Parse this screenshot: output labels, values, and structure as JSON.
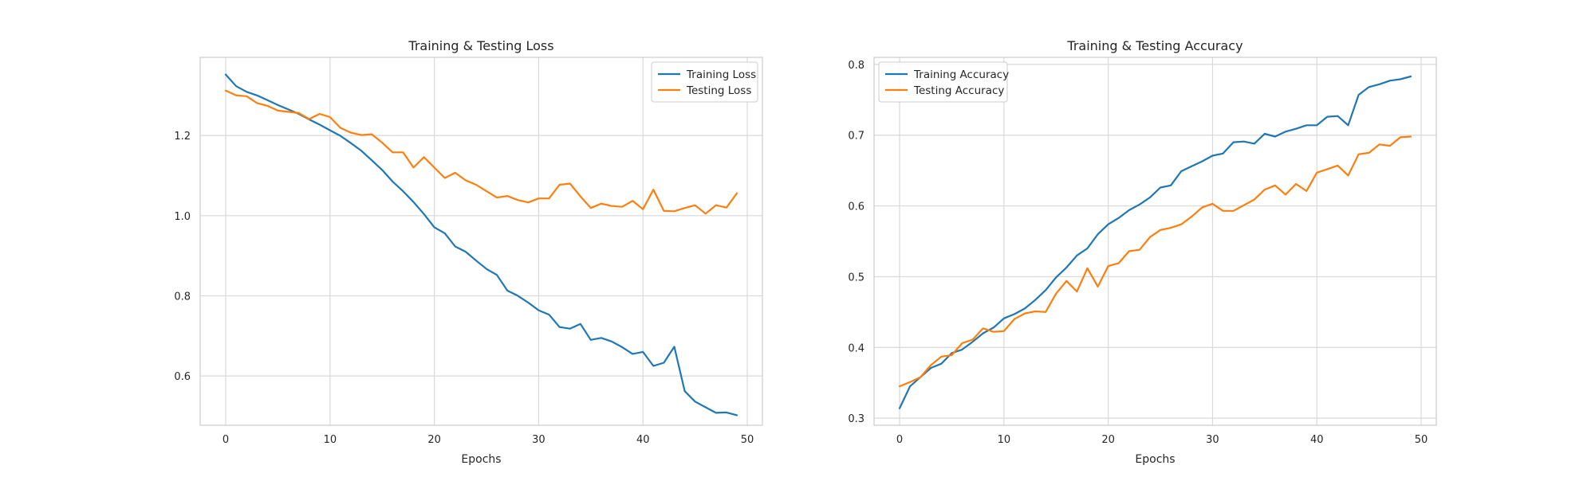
{
  "chart_data": [
    {
      "type": "line",
      "title": "Training & Testing Loss",
      "xlabel": "Epochs",
      "ylabel": "",
      "xlim": [
        -2.45,
        51.45
      ],
      "ylim": [
        0.477,
        1.395
      ],
      "xticks": [
        0,
        10,
        20,
        30,
        40,
        50
      ],
      "yticks": [
        0.6,
        0.8,
        1.0,
        1.2
      ],
      "ytick_labels": [
        "0.6",
        "0.8",
        "1.0",
        "1.2"
      ],
      "grid": true,
      "legend_position": "top-right",
      "x": [
        0,
        1,
        2,
        3,
        4,
        5,
        6,
        7,
        8,
        9,
        10,
        11,
        12,
        13,
        14,
        15,
        16,
        17,
        18,
        19,
        20,
        21,
        22,
        23,
        24,
        25,
        26,
        27,
        28,
        29,
        30,
        31,
        32,
        33,
        34,
        35,
        36,
        37,
        38,
        39,
        40,
        41,
        42,
        43,
        44,
        45,
        46,
        47,
        48,
        49
      ],
      "series": [
        {
          "name": "Training Loss",
          "color": "#1f77b4",
          "values": [
            1.352,
            1.323,
            1.309,
            1.3,
            1.288,
            1.276,
            1.265,
            1.254,
            1.24,
            1.227,
            1.213,
            1.199,
            1.181,
            1.162,
            1.138,
            1.114,
            1.085,
            1.061,
            1.034,
            1.004,
            0.971,
            0.956,
            0.923,
            0.91,
            0.888,
            0.867,
            0.852,
            0.813,
            0.8,
            0.783,
            0.764,
            0.753,
            0.722,
            0.718,
            0.73,
            0.69,
            0.695,
            0.686,
            0.672,
            0.655,
            0.66,
            0.625,
            0.633,
            0.673,
            0.562,
            0.536,
            0.522,
            0.508,
            0.509,
            0.502
          ]
        },
        {
          "name": "Testing Loss",
          "color": "#ff7f0e",
          "values": [
            1.312,
            1.3,
            1.298,
            1.281,
            1.274,
            1.262,
            1.259,
            1.256,
            1.241,
            1.254,
            1.246,
            1.219,
            1.207,
            1.201,
            1.203,
            1.182,
            1.158,
            1.158,
            1.12,
            1.146,
            1.12,
            1.094,
            1.107,
            1.088,
            1.077,
            1.061,
            1.045,
            1.049,
            1.039,
            1.033,
            1.043,
            1.043,
            1.077,
            1.08,
            1.048,
            1.019,
            1.03,
            1.024,
            1.022,
            1.037,
            1.016,
            1.065,
            1.012,
            1.011,
            1.019,
            1.026,
            1.005,
            1.026,
            1.02,
            1.056
          ]
        }
      ]
    },
    {
      "type": "line",
      "title": "Training & Testing Accuracy",
      "xlabel": "Epochs",
      "ylabel": "",
      "xlim": [
        -2.45,
        51.45
      ],
      "ylim": [
        0.29,
        0.81
      ],
      "xticks": [
        0,
        10,
        20,
        30,
        40,
        50
      ],
      "yticks": [
        0.3,
        0.4,
        0.5,
        0.6,
        0.7,
        0.8
      ],
      "ytick_labels": [
        "0.3",
        "0.4",
        "0.5",
        "0.6",
        "0.7",
        "0.8"
      ],
      "grid": true,
      "legend_position": "top-left",
      "x": [
        0,
        1,
        2,
        3,
        4,
        5,
        6,
        7,
        8,
        9,
        10,
        11,
        12,
        13,
        14,
        15,
        16,
        17,
        18,
        19,
        20,
        21,
        22,
        23,
        24,
        25,
        26,
        27,
        28,
        29,
        30,
        31,
        32,
        33,
        34,
        35,
        36,
        37,
        38,
        39,
        40,
        41,
        42,
        43,
        44,
        45,
        46,
        47,
        48,
        49
      ],
      "series": [
        {
          "name": "Training Accuracy",
          "color": "#1f77b4",
          "values": [
            0.314,
            0.345,
            0.358,
            0.371,
            0.377,
            0.392,
            0.397,
            0.408,
            0.42,
            0.428,
            0.441,
            0.447,
            0.455,
            0.467,
            0.481,
            0.499,
            0.513,
            0.53,
            0.54,
            0.56,
            0.574,
            0.583,
            0.594,
            0.602,
            0.612,
            0.626,
            0.629,
            0.649,
            0.656,
            0.663,
            0.671,
            0.674,
            0.69,
            0.691,
            0.688,
            0.702,
            0.698,
            0.705,
            0.709,
            0.714,
            0.714,
            0.726,
            0.727,
            0.714,
            0.757,
            0.768,
            0.772,
            0.777,
            0.779,
            0.783
          ]
        },
        {
          "name": "Testing Accuracy",
          "color": "#ff7f0e",
          "values": [
            0.345,
            0.351,
            0.358,
            0.375,
            0.387,
            0.389,
            0.406,
            0.411,
            0.427,
            0.422,
            0.423,
            0.44,
            0.448,
            0.451,
            0.45,
            0.476,
            0.494,
            0.479,
            0.512,
            0.486,
            0.515,
            0.519,
            0.536,
            0.538,
            0.556,
            0.566,
            0.569,
            0.574,
            0.585,
            0.598,
            0.603,
            0.593,
            0.593,
            0.601,
            0.609,
            0.623,
            0.629,
            0.616,
            0.631,
            0.621,
            0.647,
            0.652,
            0.657,
            0.643,
            0.673,
            0.675,
            0.687,
            0.685,
            0.697,
            0.698
          ]
        }
      ]
    }
  ]
}
